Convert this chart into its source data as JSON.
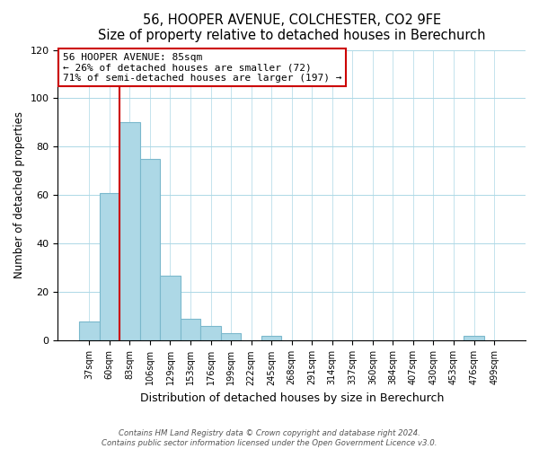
{
  "title": "56, HOOPER AVENUE, COLCHESTER, CO2 9FE",
  "subtitle": "Size of property relative to detached houses in Berechurch",
  "xlabel": "Distribution of detached houses by size in Berechurch",
  "ylabel": "Number of detached properties",
  "bar_labels": [
    "37sqm",
    "60sqm",
    "83sqm",
    "106sqm",
    "129sqm",
    "153sqm",
    "176sqm",
    "199sqm",
    "222sqm",
    "245sqm",
    "268sqm",
    "291sqm",
    "314sqm",
    "337sqm",
    "360sqm",
    "384sqm",
    "407sqm",
    "430sqm",
    "453sqm",
    "476sqm",
    "499sqm"
  ],
  "bar_heights": [
    8,
    61,
    90,
    75,
    27,
    9,
    6,
    3,
    0,
    2,
    0,
    0,
    0,
    0,
    0,
    0,
    0,
    0,
    0,
    2,
    0
  ],
  "bar_color": "#add8e6",
  "bar_edge_color": "#7ab8cc",
  "vline_color": "#cc0000",
  "annotation_line0": "56 HOOPER AVENUE: 85sqm",
  "annotation_line1": "← 26% of detached houses are smaller (72)",
  "annotation_line2": "71% of semi-detached houses are larger (197) →",
  "box_edge_color": "#cc0000",
  "ylim": [
    0,
    120
  ],
  "yticks": [
    0,
    20,
    40,
    60,
    80,
    100,
    120
  ],
  "footer1": "Contains HM Land Registry data © Crown copyright and database right 2024.",
  "footer2": "Contains public sector information licensed under the Open Government Licence v3.0."
}
